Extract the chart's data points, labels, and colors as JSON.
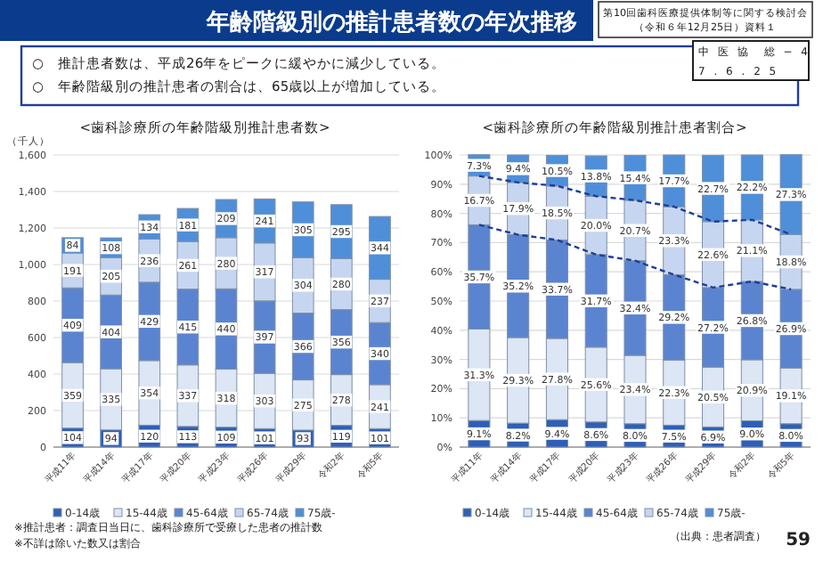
{
  "chart_data": [
    {
      "type": "other",
      "title": "年齢階級別の推計患者数の年次推移",
      "annotations": [
        "第10回歯科医療提供体制等に関する検討会",
        "（令和６年12月25日）資料１",
        "中 医 協　総 − 4",
        "7 . 6 . 2 5",
        "○　推計患者数は、平成26年をピークに緩やかに減少している。",
        "○　年齢階級別の推計患者の割合は、65歳以上が増加している。",
        "※推計患者：調査日当日に、歯科診療所で受療した患者の推計数",
        "※不詳は除いた数又は割合",
        "（出典：患者調査）",
        "59"
      ]
    },
    {
      "type": "bar",
      "stacked": true,
      "title": "<歯科診療所の年齢階級別推計患者数>",
      "ylabel": "（千人）",
      "categories": [
        "平成11年",
        "平成14年",
        "平成17年",
        "平成20年",
        "平成23年",
        "平成26年",
        "平成29年",
        "令和2年",
        "令和5年"
      ],
      "series": [
        {
          "name": "0-14歳",
          "color": "#2e5fb8",
          "values": [
            104,
            94,
            120,
            113,
            109,
            101,
            93,
            119,
            101
          ]
        },
        {
          "name": "15-44歳",
          "color": "#dce6f5",
          "values": [
            359,
            335,
            354,
            337,
            318,
            303,
            275,
            278,
            241
          ]
        },
        {
          "name": "45-64歳",
          "color": "#5b84d0",
          "values": [
            409,
            404,
            429,
            415,
            440,
            397,
            366,
            356,
            340
          ]
        },
        {
          "name": "65-74歳",
          "color": "#c7d6f0",
          "values": [
            191,
            205,
            236,
            261,
            280,
            317,
            304,
            280,
            237
          ]
        },
        {
          "name": "75歳-",
          "color": "#4f8fd9",
          "values": [
            84,
            108,
            134,
            181,
            209,
            241,
            305,
            295,
            344
          ]
        }
      ],
      "ylim": [
        0,
        1600
      ],
      "yticks": [
        0,
        200,
        400,
        600,
        800,
        {
          "value": 1000,
          "label": "1,000"
        },
        {
          "value": 1200,
          "label": "1,200"
        },
        {
          "value": 1400,
          "label": "1,400"
        },
        {
          "value": 1600,
          "label": "1,600"
        }
      ],
      "grid": "y",
      "legend": "bottom",
      "data_labels": true
    },
    {
      "type": "bar",
      "stacked": true,
      "title": "<歯科診療所の年齢階級別推計患者割合>",
      "categories": [
        "平成11年",
        "平成14年",
        "平成17年",
        "平成20年",
        "平成23年",
        "平成26年",
        "平成29年",
        "令和2年",
        "令和5年"
      ],
      "series": [
        {
          "name": "0-14歳",
          "color": "#2e5fb8",
          "values": [
            9.1,
            8.2,
            9.4,
            8.6,
            8.0,
            7.5,
            6.9,
            9.0,
            8.0
          ],
          "value_labels": [
            "9.1%",
            "8.2%",
            "9.4%",
            "8.6%",
            "8.0%",
            "7.5%",
            "6.9%",
            "9.0%",
            "8.0%"
          ]
        },
        {
          "name": "15-44歳",
          "color": "#dce6f5",
          "values": [
            31.3,
            29.3,
            27.8,
            25.6,
            23.4,
            22.3,
            20.5,
            20.9,
            19.1
          ],
          "value_labels": [
            "31.3%",
            "29.3%",
            "27.8%",
            "25.6%",
            "23.4%",
            "22.3%",
            "20.5%",
            "20.9%",
            "19.1%"
          ]
        },
        {
          "name": "45-64歳",
          "color": "#5b84d0",
          "values": [
            35.7,
            35.2,
            33.7,
            31.7,
            32.4,
            29.2,
            27.2,
            26.8,
            26.9
          ],
          "value_labels": [
            "35.7%",
            "35.2%",
            "33.7%",
            "31.7%",
            "32.4%",
            "29.2%",
            "27.2%",
            "26.8%",
            "26.9%"
          ]
        },
        {
          "name": "65-74歳",
          "color": "#c7d6f0",
          "values": [
            16.7,
            17.9,
            18.5,
            20.0,
            20.7,
            23.3,
            22.6,
            21.1,
            18.8
          ],
          "value_labels": [
            "16.7%",
            "17.9%",
            "18.5%",
            "20.0%",
            "20.7%",
            "23.3%",
            "22.6%",
            "21.1%",
            "18.8%"
          ]
        },
        {
          "name": "75歳-",
          "color": "#4f8fd9",
          "values": [
            7.3,
            9.4,
            10.5,
            13.8,
            15.4,
            17.7,
            22.7,
            22.2,
            27.3
          ],
          "value_labels": [
            "7.3%",
            "9.4%",
            "10.5%",
            "13.8%",
            "15.4%",
            "17.7%",
            "22.7%",
            "22.2%",
            "27.3%"
          ]
        },
        {
          "type": "line",
          "color": "#1f3e9c",
          "line_style": "dashed",
          "values": [
            76.1,
            72.7,
            70.9,
            65.9,
            63.8,
            59.0,
            54.6,
            56.7,
            54.0
          ]
        },
        {
          "type": "line",
          "color": "#1f3e9c",
          "line_style": "dashed",
          "values": [
            92.8,
            90.6,
            89.4,
            85.9,
            84.5,
            82.3,
            77.2,
            77.8,
            72.8
          ]
        }
      ],
      "ylim": [
        0,
        100
      ],
      "yticks": [
        {
          "value": 0,
          "label": "0%"
        },
        {
          "value": 10,
          "label": "10%"
        },
        {
          "value": 20,
          "label": "20%"
        },
        {
          "value": 30,
          "label": "30%"
        },
        {
          "value": 40,
          "label": "40%"
        },
        {
          "value": 50,
          "label": "50%"
        },
        {
          "value": 60,
          "label": "60%"
        },
        {
          "value": 70,
          "label": "70%"
        },
        {
          "value": 80,
          "label": "80%"
        },
        {
          "value": 90,
          "label": "90%"
        },
        {
          "value": 100,
          "label": "100%"
        }
      ],
      "grid": "y",
      "legend": "bottom"
    }
  ]
}
